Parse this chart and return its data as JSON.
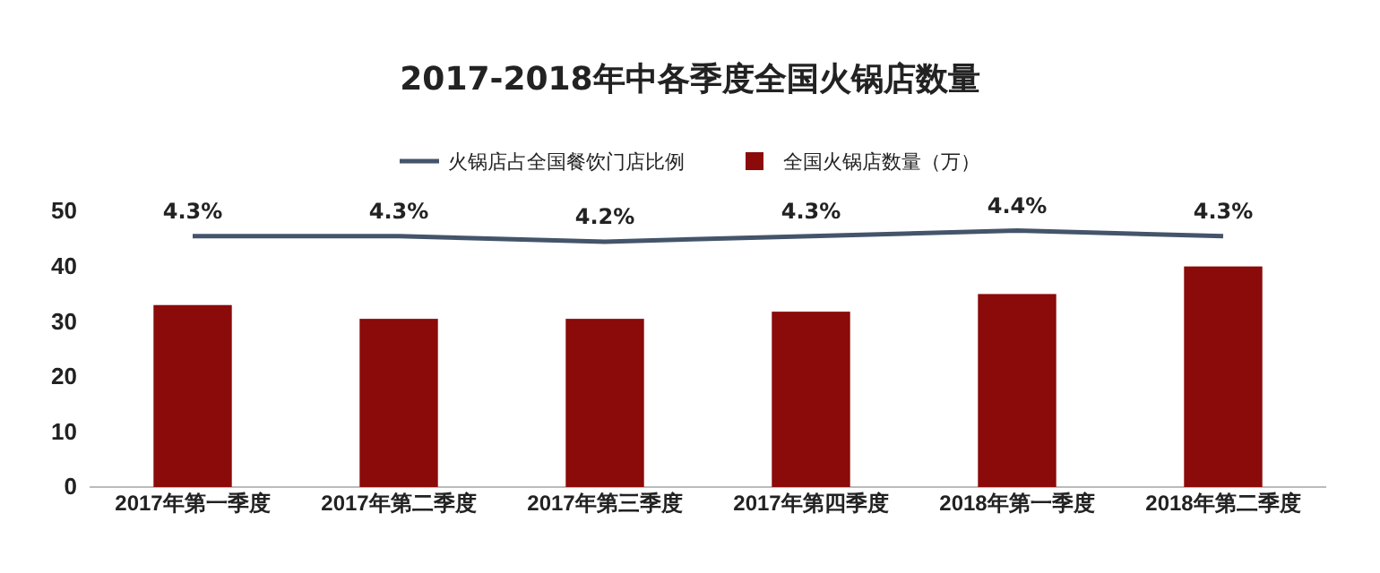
{
  "chart_data": {
    "type": "bar",
    "title": "2017-2018年中各季度全国火锅店数量",
    "categories": [
      "2017年第一季度",
      "2017年第二季度",
      "2017年第三季度",
      "2017年第四季度",
      "2018年第一季度",
      "2018年第二季度"
    ],
    "series": [
      {
        "name": "火锅店占全国餐饮门店比例",
        "type": "line",
        "axis": "y2",
        "color": "#44546a",
        "values": [
          4.3,
          4.3,
          4.2,
          4.3,
          4.4,
          4.3
        ],
        "value_labels": [
          "4.3%",
          "4.3%",
          "4.2%",
          "4.3%",
          "4.4%",
          "4.3%"
        ]
      },
      {
        "name": "全国火锅店数量（万）",
        "color": "#8b0a0a",
        "values": [
          33,
          30.5,
          30.5,
          31.8,
          35,
          40
        ]
      }
    ],
    "ylim": [
      0,
      50
    ],
    "yticks": [
      0,
      10,
      20,
      30,
      40,
      50
    ],
    "tick_labels": [
      "x",
      "y"
    ],
    "grid": false,
    "legend": "top",
    "marker": "none"
  }
}
